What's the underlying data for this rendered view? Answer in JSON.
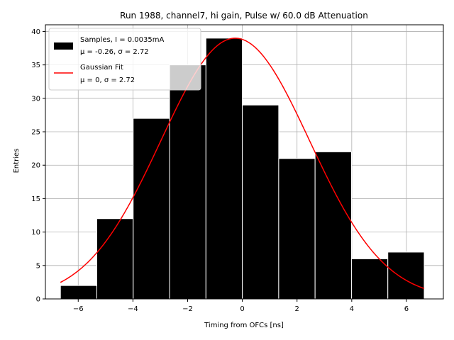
{
  "chart_data": {
    "type": "bar",
    "title": "Run 1988, channel7, hi gain, Pulse w/ 60.0 dB Attenuation",
    "xlabel": "Timing from OFCs [ns]",
    "ylabel": "Entries",
    "xlim": [
      -7.2,
      7.35
    ],
    "ylim": [
      0,
      41
    ],
    "xticks": [
      -6,
      -4,
      -2,
      0,
      2,
      4,
      6
    ],
    "yticks": [
      0,
      5,
      10,
      15,
      20,
      25,
      30,
      35,
      40
    ],
    "grid": true,
    "legend_position": "top-left",
    "bin_edges": [
      -6.65,
      -5.32,
      -3.99,
      -2.66,
      -1.33,
      0.0,
      1.33,
      2.66,
      3.99,
      5.32,
      6.65
    ],
    "values": [
      2,
      12,
      27,
      35,
      39,
      29,
      21,
      22,
      6,
      7
    ],
    "series": [
      {
        "name": "Samples, I = 0.0035mA",
        "name_line2": "μ = -0.26, σ = 2.72",
        "kind": "histogram",
        "color": "#000000",
        "edgecolor": "#ffffff"
      },
      {
        "name": "Gaussian Fit",
        "name_line2": "μ = 0, σ = 2.72",
        "kind": "line",
        "color": "#ff0000",
        "amplitude": 39,
        "mu": -0.26,
        "sigma": 2.72,
        "x_range": [
          -6.65,
          6.65
        ]
      }
    ]
  }
}
